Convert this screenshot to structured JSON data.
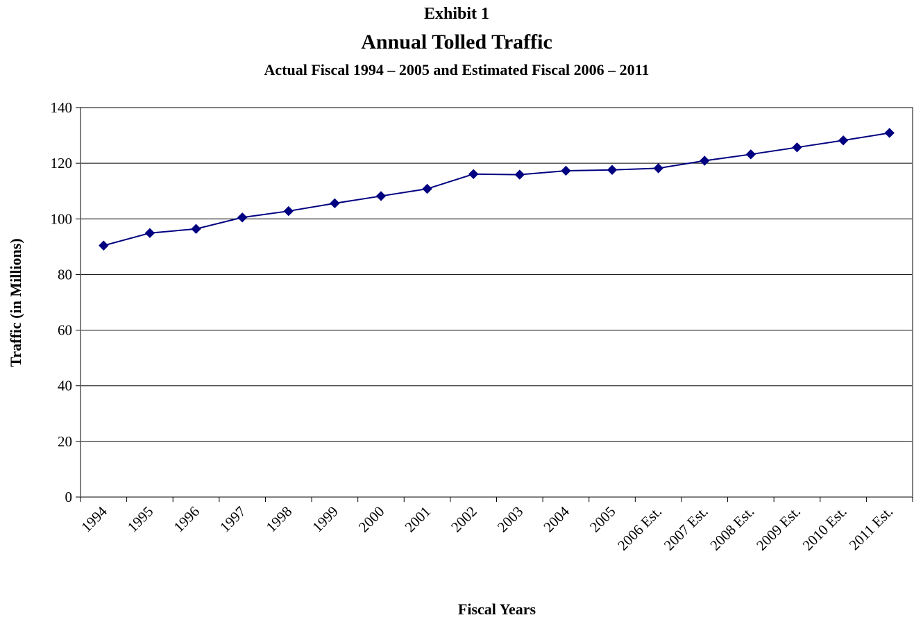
{
  "chart_data": {
    "type": "line",
    "exhibit": "Exhibit 1",
    "title": "Annual Tolled Traffic",
    "subtitle": "Actual Fiscal 1994 – 2005 and Estimated Fiscal 2006 – 2011",
    "xlabel": "Fiscal Years",
    "ylabel": "Traffic (in Millions)",
    "ylim": [
      0,
      140
    ],
    "yticks": [
      "0",
      "20",
      "40",
      "60",
      "80",
      "100",
      "120",
      "140"
    ],
    "grid": true,
    "legend": "none",
    "categories": [
      "1994",
      "1995",
      "1996",
      "1997",
      "1998",
      "1999",
      "2000",
      "2001",
      "2002",
      "2003",
      "2004",
      "2005",
      "2006 Est.",
      "2007 Est.",
      "2008 Est.",
      "2009 Est.",
      "2010 Est.",
      "2011 Est."
    ],
    "series": [
      {
        "color": "#000080",
        "marker": "diamond",
        "values": [
          90.4,
          94.9,
          96.4,
          100.5,
          102.8,
          105.6,
          108.2,
          110.8,
          116.1,
          115.9,
          117.3,
          117.6,
          118.2,
          120.9,
          123.2,
          125.7,
          128.2,
          130.9
        ]
      }
    ]
  }
}
